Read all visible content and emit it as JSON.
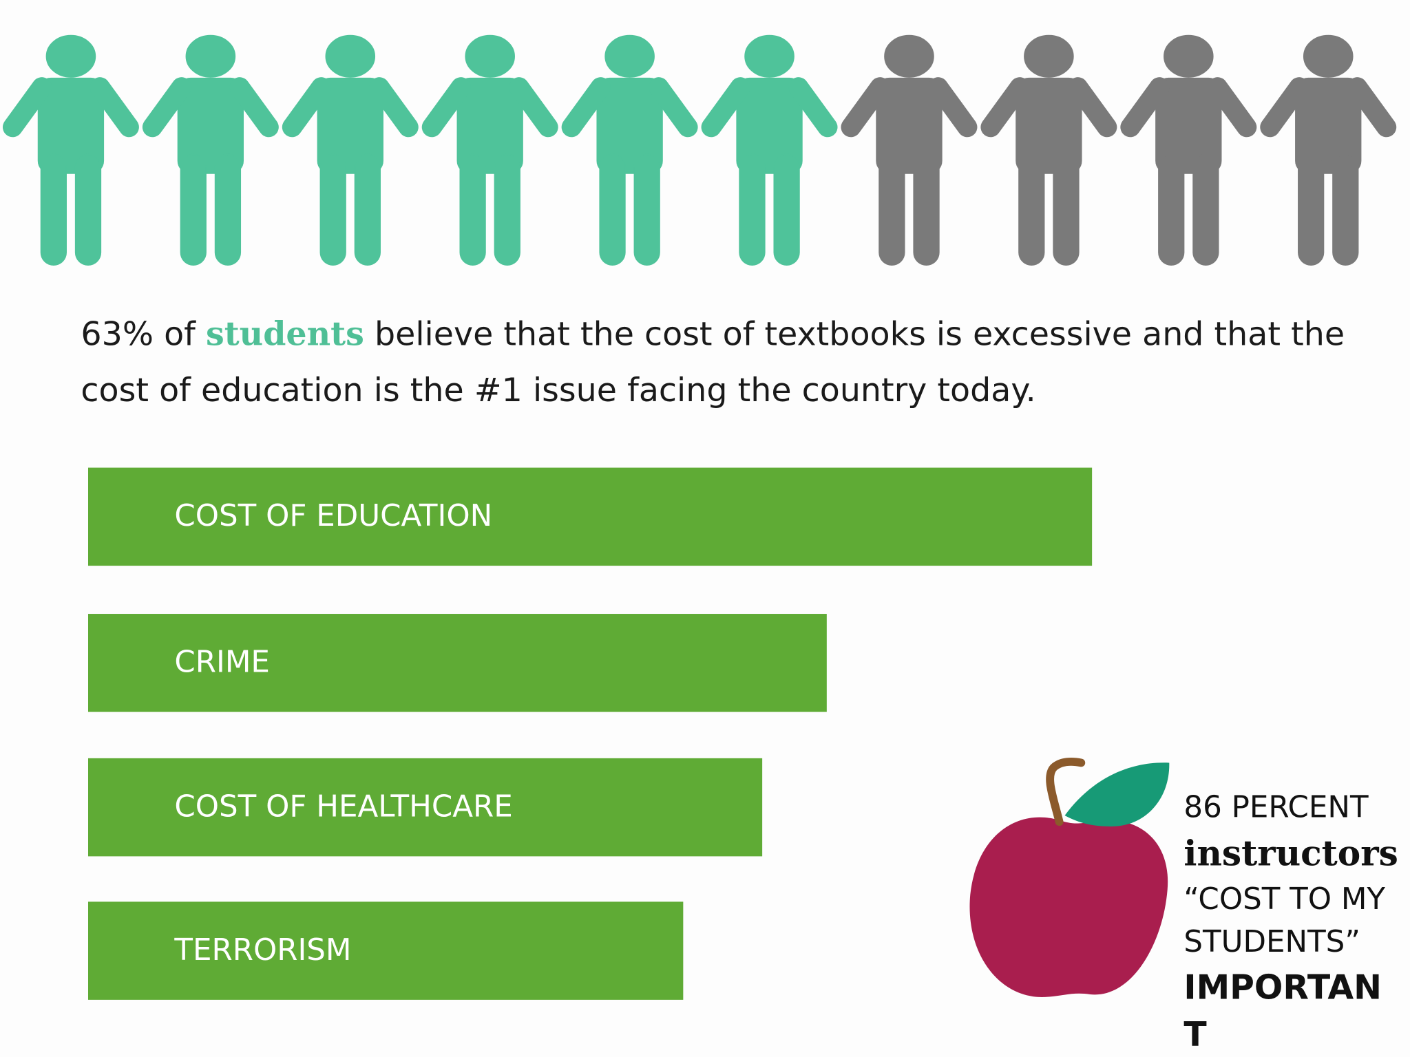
{
  "pictogram": {
    "filled": 6,
    "total": 10,
    "filled_color": "#4fc39a",
    "empty_color": "#7a7a7a"
  },
  "statement": {
    "lines": [
      [
        "63% of ",
        "students",
        " believe that the cost of textbooks is excessive and that the"
      ],
      [
        "cost of education is the #1 issue facing the country today."
      ]
    ]
  },
  "issues": [
    "COST OF EDUCATION",
    "CRIME",
    "COST OF HEALTHCARE",
    "TERRORISM"
  ],
  "instructors": {
    "line1": "86 PERCENT",
    "highlight": "instructors",
    "quote_lines": [
      "“COST TO MY",
      "STUDENTS”"
    ],
    "emphasis_lines": [
      "IMPORTAN",
      "T"
    ]
  }
}
